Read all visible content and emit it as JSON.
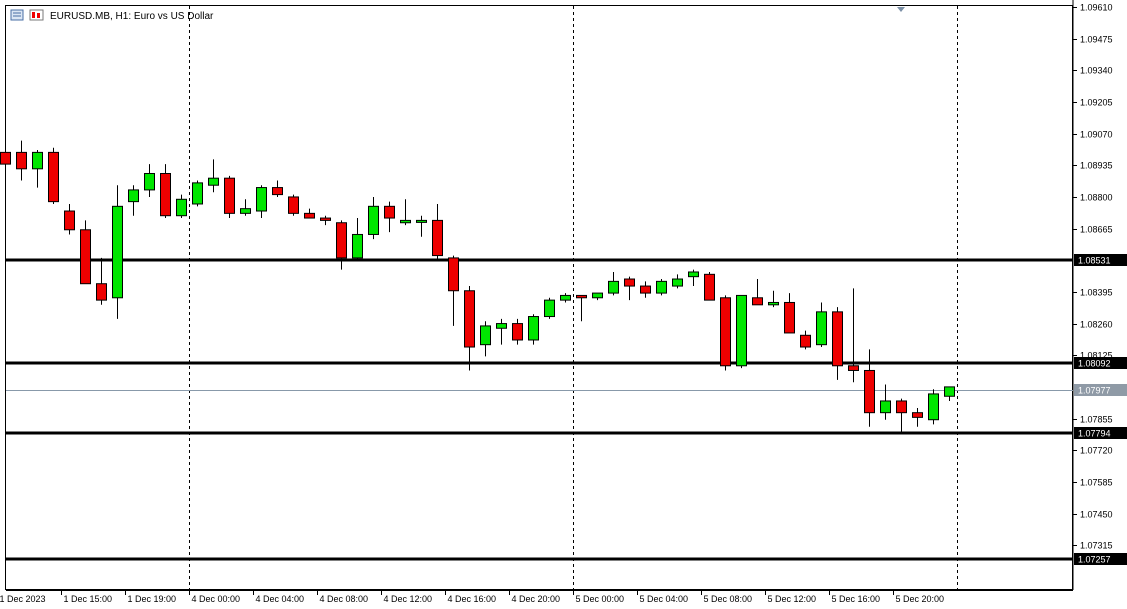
{
  "window": {
    "title": "EURUSD.MB, H1:  Euro vs US Dollar"
  },
  "colors": {
    "bull": "#00e600",
    "bear": "#ee0000",
    "wick": "#000000",
    "bid_line": "#8899aa",
    "level_line": "#000000",
    "separator": "#000000"
  },
  "chart_data": {
    "type": "candlestick",
    "symbol": "EURUSD.MB",
    "timeframe": "H1",
    "description": "Euro vs US Dollar",
    "ylim": [
      1.07175,
      1.0961
    ],
    "y_ticks": [
      "1.09610",
      "1.09475",
      "1.09340",
      "1.09205",
      "1.09070",
      "1.08935",
      "1.08800",
      "1.08665",
      "1.08531",
      "1.08395",
      "1.08260",
      "1.08125",
      "1.08092",
      "1.07977",
      "1.07855",
      "1.07794",
      "1.07720",
      "1.07585",
      "1.07450",
      "1.07315",
      "1.07257"
    ],
    "x_labels": [
      {
        "label": "1 Dec 2023",
        "index": 0
      },
      {
        "label": "1 Dec 15:00",
        "index": 4
      },
      {
        "label": "1 Dec 19:00",
        "index": 8
      },
      {
        "label": "4 Dec 00:00",
        "index": 12
      },
      {
        "label": "4 Dec 04:00",
        "index": 16
      },
      {
        "label": "4 Dec 08:00",
        "index": 20
      },
      {
        "label": "4 Dec 12:00",
        "index": 24
      },
      {
        "label": "4 Dec 16:00",
        "index": 28
      },
      {
        "label": "4 Dec 20:00",
        "index": 32
      },
      {
        "label": "5 Dec 00:00",
        "index": 36
      },
      {
        "label": "5 Dec 04:00",
        "index": 40
      },
      {
        "label": "5 Dec 08:00",
        "index": 44
      },
      {
        "label": "5 Dec 12:00",
        "index": 48
      },
      {
        "label": "5 Dec 16:00",
        "index": 52
      },
      {
        "label": "5 Dec 20:00",
        "index": 56
      }
    ],
    "period_separators": [
      12,
      36,
      60
    ],
    "horizontal_levels": [
      "1.08531",
      "1.08092",
      "1.07794",
      "1.07257"
    ],
    "bid": "1.07977",
    "candles": [
      {
        "o": 1.0899,
        "h": 1.0902,
        "l": 1.08935,
        "c": 1.0894
      },
      {
        "o": 1.0899,
        "h": 1.0904,
        "l": 1.0887,
        "c": 1.0892
      },
      {
        "o": 1.0892,
        "h": 1.09,
        "l": 1.0884,
        "c": 1.0899
      },
      {
        "o": 1.0899,
        "h": 1.0901,
        "l": 1.0877,
        "c": 1.0878
      },
      {
        "o": 1.0874,
        "h": 1.0877,
        "l": 1.0864,
        "c": 1.0866
      },
      {
        "o": 1.0866,
        "h": 1.087,
        "l": 1.0844,
        "c": 1.0843
      },
      {
        "o": 1.0843,
        "h": 1.0854,
        "l": 1.0834,
        "c": 1.0836
      },
      {
        "o": 1.0837,
        "h": 1.0885,
        "l": 1.0828,
        "c": 1.0876
      },
      {
        "o": 1.0878,
        "h": 1.0885,
        "l": 1.0872,
        "c": 1.0883
      },
      {
        "o": 1.0883,
        "h": 1.0894,
        "l": 1.088,
        "c": 1.089
      },
      {
        "o": 1.089,
        "h": 1.0894,
        "l": 1.0871,
        "c": 1.0872
      },
      {
        "o": 1.0872,
        "h": 1.0881,
        "l": 1.0871,
        "c": 1.0879
      },
      {
        "o": 1.0877,
        "h": 1.0887,
        "l": 1.0876,
        "c": 1.0886
      },
      {
        "o": 1.0885,
        "h": 1.0896,
        "l": 1.0882,
        "c": 1.0888
      },
      {
        "o": 1.0888,
        "h": 1.0889,
        "l": 1.0871,
        "c": 1.0873
      },
      {
        "o": 1.0873,
        "h": 1.0879,
        "l": 1.0872,
        "c": 1.0875
      },
      {
        "o": 1.0874,
        "h": 1.0885,
        "l": 1.0871,
        "c": 1.0884
      },
      {
        "o": 1.0884,
        "h": 1.0887,
        "l": 1.088,
        "c": 1.0881
      },
      {
        "o": 1.088,
        "h": 1.0881,
        "l": 1.0872,
        "c": 1.0873
      },
      {
        "o": 1.0873,
        "h": 1.0875,
        "l": 1.0871,
        "c": 1.0871
      },
      {
        "o": 1.0871,
        "h": 1.0872,
        "l": 1.0868,
        "c": 1.087
      },
      {
        "o": 1.0869,
        "h": 1.087,
        "l": 1.0849,
        "c": 1.0854
      },
      {
        "o": 1.0854,
        "h": 1.0871,
        "l": 1.0853,
        "c": 1.0864
      },
      {
        "o": 1.0864,
        "h": 1.088,
        "l": 1.0862,
        "c": 1.0876
      },
      {
        "o": 1.0876,
        "h": 1.0878,
        "l": 1.0865,
        "c": 1.0871
      },
      {
        "o": 1.0869,
        "h": 1.0879,
        "l": 1.0868,
        "c": 1.087
      },
      {
        "o": 1.087,
        "h": 1.0872,
        "l": 1.0863,
        "c": 1.087
      },
      {
        "o": 1.087,
        "h": 1.0877,
        "l": 1.0853,
        "c": 1.0855
      },
      {
        "o": 1.0854,
        "h": 1.0855,
        "l": 1.0825,
        "c": 1.084
      },
      {
        "o": 1.084,
        "h": 1.0842,
        "l": 1.0806,
        "c": 1.0816
      },
      {
        "o": 1.0817,
        "h": 1.0827,
        "l": 1.0812,
        "c": 1.0825
      },
      {
        "o": 1.0824,
        "h": 1.0828,
        "l": 1.0817,
        "c": 1.0826
      },
      {
        "o": 1.0826,
        "h": 1.0828,
        "l": 1.0817,
        "c": 1.0819
      },
      {
        "o": 1.0819,
        "h": 1.083,
        "l": 1.0817,
        "c": 1.0829
      },
      {
        "o": 1.0829,
        "h": 1.0837,
        "l": 1.0828,
        "c": 1.0836
      },
      {
        "o": 1.0836,
        "h": 1.0839,
        "l": 1.0835,
        "c": 1.0838
      },
      {
        "o": 1.0838,
        "h": 1.0838,
        "l": 1.0827,
        "c": 1.0837
      },
      {
        "o": 1.0837,
        "h": 1.0839,
        "l": 1.0836,
        "c": 1.0839
      },
      {
        "o": 1.0839,
        "h": 1.0848,
        "l": 1.0838,
        "c": 1.0844
      },
      {
        "o": 1.0845,
        "h": 1.0846,
        "l": 1.0836,
        "c": 1.0842
      },
      {
        "o": 1.0842,
        "h": 1.0844,
        "l": 1.0837,
        "c": 1.0839
      },
      {
        "o": 1.0839,
        "h": 1.0845,
        "l": 1.0838,
        "c": 1.0844
      },
      {
        "o": 1.0842,
        "h": 1.0847,
        "l": 1.0841,
        "c": 1.0845
      },
      {
        "o": 1.0846,
        "h": 1.0849,
        "l": 1.0842,
        "c": 1.0848
      },
      {
        "o": 1.0847,
        "h": 1.0848,
        "l": 1.0836,
        "c": 1.0836
      },
      {
        "o": 1.0837,
        "h": 1.0838,
        "l": 1.0806,
        "c": 1.0808
      },
      {
        "o": 1.0808,
        "h": 1.0838,
        "l": 1.0807,
        "c": 1.0838
      },
      {
        "o": 1.0837,
        "h": 1.0845,
        "l": 1.0834,
        "c": 1.0834
      },
      {
        "o": 1.0834,
        "h": 1.084,
        "l": 1.0833,
        "c": 1.0835
      },
      {
        "o": 1.0835,
        "h": 1.0839,
        "l": 1.0822,
        "c": 1.0822
      },
      {
        "o": 1.0821,
        "h": 1.0823,
        "l": 1.0815,
        "c": 1.0816
      },
      {
        "o": 1.0817,
        "h": 1.0835,
        "l": 1.0816,
        "c": 1.0831
      },
      {
        "o": 1.0831,
        "h": 1.0833,
        "l": 1.0802,
        "c": 1.0808
      },
      {
        "o": 1.0808,
        "h": 1.0841,
        "l": 1.0801,
        "c": 1.0806
      },
      {
        "o": 1.0806,
        "h": 1.0815,
        "l": 1.0782,
        "c": 1.0788
      },
      {
        "o": 1.0788,
        "h": 1.08,
        "l": 1.0785,
        "c": 1.0793
      },
      {
        "o": 1.0793,
        "h": 1.0794,
        "l": 1.0779,
        "c": 1.0788
      },
      {
        "o": 1.0788,
        "h": 1.079,
        "l": 1.0782,
        "c": 1.0786
      },
      {
        "o": 1.0785,
        "h": 1.0798,
        "l": 1.0783,
        "c": 1.0796
      },
      {
        "o": 1.0795,
        "h": 1.0799,
        "l": 1.0793,
        "c": 1.0799
      }
    ]
  }
}
